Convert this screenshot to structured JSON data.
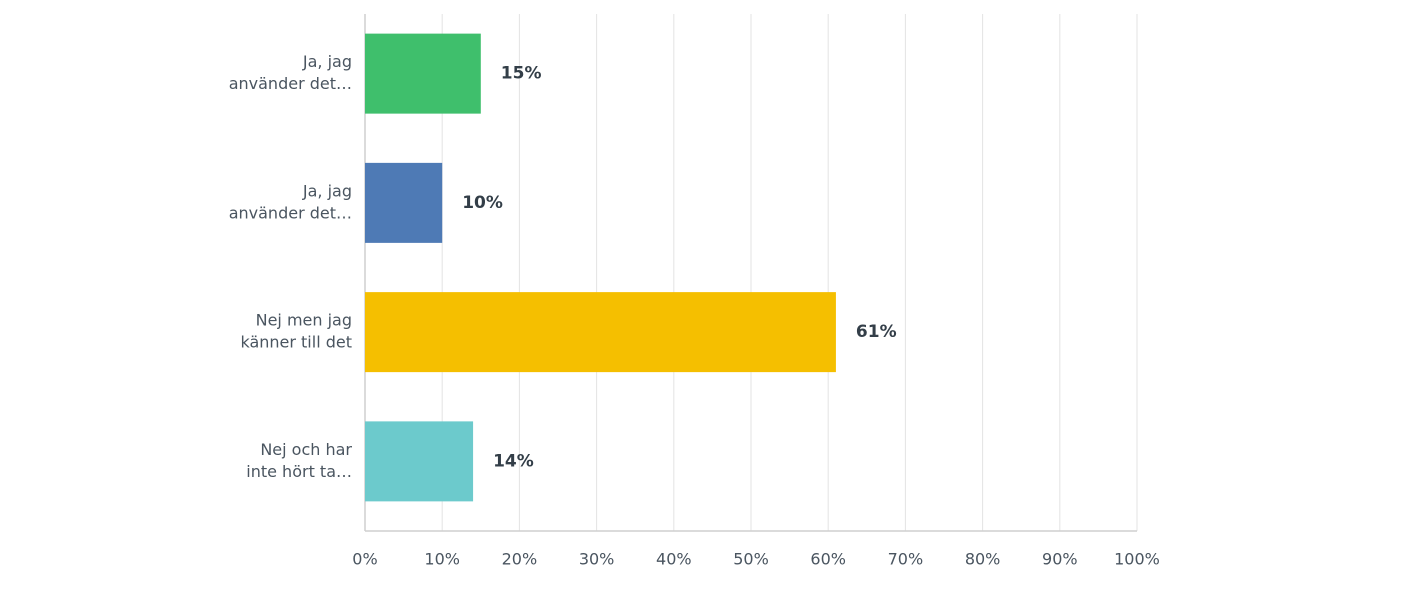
{
  "chart_data": {
    "type": "hbar",
    "categories": [
      [
        "Ja, jag",
        "använder det…"
      ],
      [
        "Ja, jag",
        "använder det…"
      ],
      [
        "Nej men jag",
        "känner till det"
      ],
      [
        "Nej och har",
        "inte hört ta…"
      ]
    ],
    "values": [
      15,
      10,
      61,
      14
    ],
    "value_labels": [
      "15%",
      "10%",
      "61%",
      "14%"
    ],
    "colors": [
      "#3fbf6c",
      "#4e7ab5",
      "#f5bf00",
      "#6ccacc"
    ],
    "xlim": [
      0,
      100
    ],
    "xticks": [
      {
        "value": 0,
        "label": "0%"
      },
      {
        "value": 10,
        "label": "10%"
      },
      {
        "value": 20,
        "label": "20%"
      },
      {
        "value": 30,
        "label": "30%"
      },
      {
        "value": 40,
        "label": "40%"
      },
      {
        "value": 50,
        "label": "50%"
      },
      {
        "value": 60,
        "label": "60%"
      },
      {
        "value": 70,
        "label": "70%"
      },
      {
        "value": 80,
        "label": "80%"
      },
      {
        "value": 90,
        "label": "90%"
      },
      {
        "value": 100,
        "label": "100%"
      }
    ],
    "grid": true
  }
}
